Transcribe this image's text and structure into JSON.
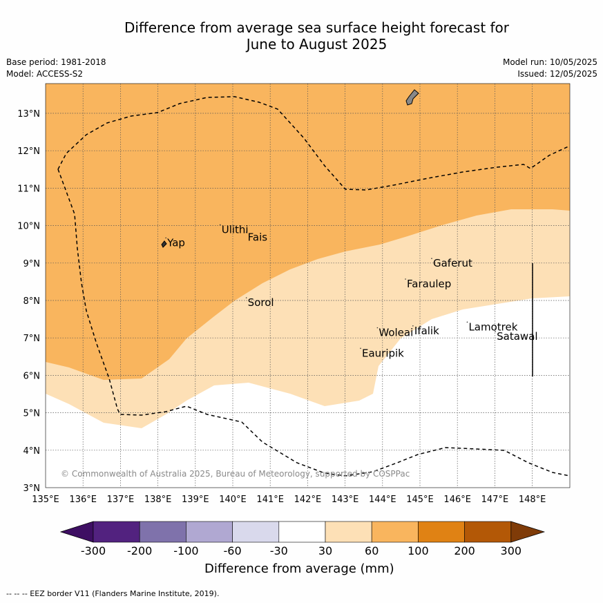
{
  "title_line1": "Difference from average sea surface height forecast for",
  "title_line2": "June to August 2025",
  "base_period": "Base period: 1981-2018",
  "model": "Model: ACCESS-S2",
  "model_run": "Model run: 10/05/2025",
  "issued": "Issued: 12/05/2025",
  "copyright": "© Commonwealth of Australia 2025, Bureau of Meteorology, supported by COSPPac",
  "map": {
    "lon_ticks": [
      "135°E",
      "136°E",
      "137°E",
      "138°E",
      "139°E",
      "140°E",
      "141°E",
      "142°E",
      "143°E",
      "144°E",
      "145°E",
      "146°E",
      "147°E",
      "148°E"
    ],
    "lat_ticks": [
      "3°N",
      "4°N",
      "5°N",
      "6°N",
      "7°N",
      "8°N",
      "9°N",
      "10°N",
      "11°N",
      "12°N",
      "13°N"
    ],
    "places": [
      {
        "name": "Yap",
        "lon": 138.25,
        "lat": 9.45
      },
      {
        "name": "Ulithi",
        "lon": 139.7,
        "lat": 9.8
      },
      {
        "name": "Fais",
        "lon": 140.4,
        "lat": 9.6
      },
      {
        "name": "Sorol",
        "lon": 140.4,
        "lat": 7.85
      },
      {
        "name": "Gaferut",
        "lon": 145.35,
        "lat": 8.9
      },
      {
        "name": "Faraulep",
        "lon": 144.65,
        "lat": 8.35
      },
      {
        "name": "Woleai",
        "lon": 143.9,
        "lat": 7.05
      },
      {
        "name": "Ifalik",
        "lon": 144.85,
        "lat": 7.1
      },
      {
        "name": "Lamotrek",
        "lon": 146.3,
        "lat": 7.2
      },
      {
        "name": "Satawal",
        "lon": 147.05,
        "lat": 6.95
      },
      {
        "name": "Eauripik",
        "lon": 143.45,
        "lat": 6.5
      }
    ]
  },
  "colorbar": {
    "title": "Difference from average (mm)",
    "labels": [
      "-300",
      "-200",
      "-100",
      "-60",
      "-30",
      "30",
      "60",
      "100",
      "200",
      "300"
    ],
    "colors": [
      "#3e0f63",
      "#52227f",
      "#7f72ab",
      "#b0a8d2",
      "#d9d9ec",
      "#ffffff",
      "#fde0b6",
      "#f9b55e",
      "#e08214",
      "#b35806",
      "#7f3b08"
    ]
  },
  "footnote": "--  --  -- EEZ border V11 (Flanders Marine Institute, 2019)."
}
